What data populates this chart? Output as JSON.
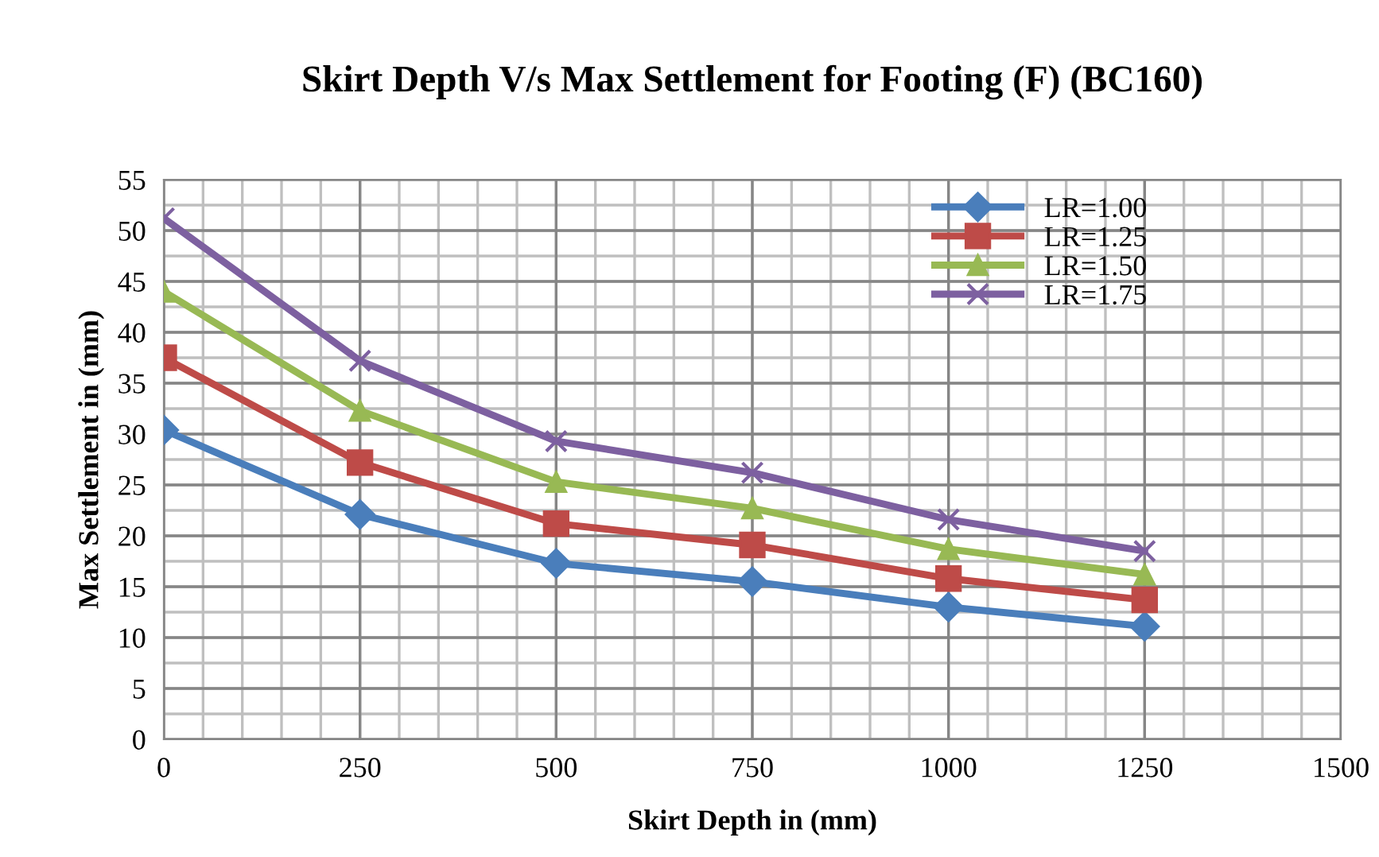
{
  "chart_data": {
    "type": "line",
    "title": "Skirt Depth V/s Max Settlement for Footing (F) (BC160)",
    "xlabel": "Skirt Depth in (mm)",
    "ylabel": "Max Settlement in (mm)",
    "x": [
      0,
      250,
      500,
      750,
      1000,
      1250
    ],
    "series": [
      {
        "name": "LR=1.00",
        "color": "#4a7ebb",
        "marker": "diamond",
        "values": [
          30.4,
          22.1,
          17.3,
          15.5,
          13.0,
          11.1
        ]
      },
      {
        "name": "LR=1.25",
        "color": "#be4b48",
        "marker": "square",
        "values": [
          37.5,
          27.2,
          21.2,
          19.1,
          15.8,
          13.7
        ]
      },
      {
        "name": "LR=1.50",
        "color": "#98b954",
        "marker": "triangle",
        "values": [
          44.0,
          32.3,
          25.3,
          22.7,
          18.7,
          16.2
        ]
      },
      {
        "name": "LR=1.75",
        "color": "#7d60a0",
        "marker": "cross",
        "values": [
          51.2,
          37.2,
          29.3,
          26.2,
          21.6,
          18.5
        ]
      }
    ],
    "xlim": [
      0,
      1500
    ],
    "xticks": [
      0,
      250,
      500,
      750,
      1000,
      1250,
      1500
    ],
    "ylim": [
      0,
      55
    ],
    "yticks": [
      0,
      5,
      10,
      15,
      20,
      25,
      30,
      35,
      40,
      45,
      50,
      55
    ],
    "grid": true,
    "legend": "top right",
    "line_style": "solid"
  }
}
